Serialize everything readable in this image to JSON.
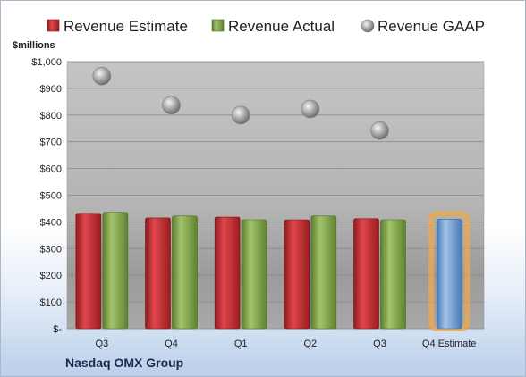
{
  "company": "Nasdaq OMX Group",
  "chart_data": {
    "type": "bar",
    "unit_label": "$millions",
    "categories": [
      "Q3",
      "Q4",
      "Q1",
      "Q2",
      "Q3",
      "Q4 Estimate"
    ],
    "series": [
      {
        "name": "Revenue Estimate",
        "kind": "bar",
        "color": "#c0282d",
        "values": [
          432,
          415,
          418,
          408,
          412,
          null
        ]
      },
      {
        "name": "Revenue Actual",
        "kind": "bar",
        "color": "#7ea446",
        "values": [
          436,
          422,
          408,
          422,
          408,
          null
        ]
      },
      {
        "name": "Revenue GAAP",
        "kind": "marker",
        "color": "#a6a6a6",
        "values": [
          946,
          837,
          800,
          823,
          742,
          null
        ]
      }
    ],
    "highlight": {
      "category_index": 5,
      "value": 410,
      "color": "#6f9fd6",
      "glow": "#f0a848"
    },
    "ylim": [
      0,
      1000
    ],
    "yticks": [
      0,
      100,
      200,
      300,
      400,
      500,
      600,
      700,
      800,
      900,
      1000
    ],
    "ytick_labels": [
      "$-",
      "$100",
      "$200",
      "$300",
      "$400",
      "$500",
      "$600",
      "$700",
      "$800",
      "$900",
      "$1,000"
    ],
    "legend_position": "top",
    "grid": true
  }
}
